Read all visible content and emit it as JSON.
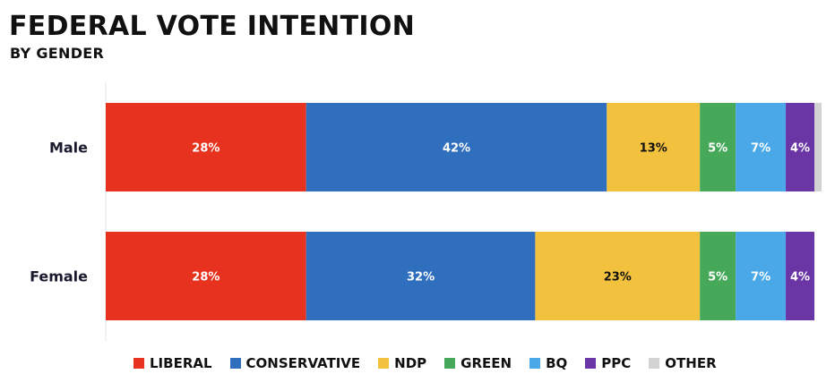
{
  "header": {
    "title": "FEDERAL VOTE INTENTION",
    "subtitle": "BY GENDER"
  },
  "chart_data": {
    "type": "bar",
    "orientation": "horizontal",
    "stacked": true,
    "title": "FEDERAL VOTE INTENTION",
    "subtitle": "BY GENDER",
    "categories": [
      "Male",
      "Female"
    ],
    "xlim": [
      0,
      100
    ],
    "grid": false,
    "legend_position": "bottom",
    "series": [
      {
        "name": "LIBERAL",
        "color": "#e6321e",
        "values": [
          28,
          28
        ],
        "labels": [
          "28%",
          "28%"
        ],
        "label_color": "#ffffff"
      },
      {
        "name": "CONSERVATIVE",
        "color": "#2f6fbe",
        "values": [
          42,
          32
        ],
        "labels": [
          "42%",
          "32%"
        ],
        "label_color": "#ffffff"
      },
      {
        "name": "NDP",
        "color": "#f2c13d",
        "values": [
          13,
          23
        ],
        "labels": [
          "13%",
          "23%"
        ],
        "label_color": "#111111"
      },
      {
        "name": "GREEN",
        "color": "#46a95a",
        "values": [
          5,
          5
        ],
        "labels": [
          "5%",
          "5%"
        ],
        "label_color": "#ffffff"
      },
      {
        "name": "BQ",
        "color": "#4aa8e8",
        "values": [
          7,
          7
        ],
        "labels": [
          "7%",
          "7%"
        ],
        "label_color": "#ffffff"
      },
      {
        "name": "PPC",
        "color": "#6a35a5",
        "values": [
          4,
          4
        ],
        "labels": [
          "4%",
          "4%"
        ],
        "label_color": "#ffffff"
      },
      {
        "name": "OTHER",
        "color": "#d2d2d2",
        "values": [
          1,
          0
        ],
        "labels": [
          "",
          ""
        ],
        "label_color": "#111111"
      }
    ]
  }
}
